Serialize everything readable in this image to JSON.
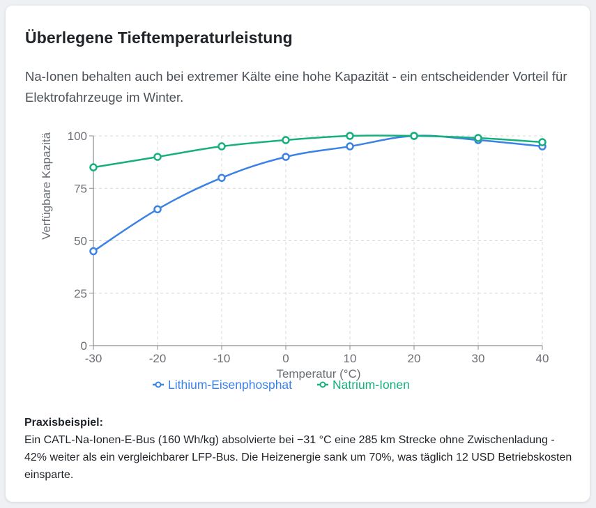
{
  "card": {
    "title": "Überlegene Tieftemperaturleistung",
    "subtitle": "Na-Ionen behalten auch bei extremer Kälte eine hohe Kapazität - ein entscheidender Vorteil für Elektrofahrzeuge im Winter."
  },
  "chart_data": {
    "type": "line",
    "x": [
      -30,
      -20,
      -10,
      0,
      10,
      20,
      30,
      40
    ],
    "xticks": [
      "-30",
      "-20",
      "-10",
      "0",
      "10",
      "20",
      "30",
      "40"
    ],
    "yticks": [
      "0",
      "25",
      "50",
      "75",
      "100"
    ],
    "ylim": [
      0,
      100
    ],
    "xlabel": "Temperatur (°C)",
    "ylabel": "Verfügbare Kapazitä",
    "grid": true,
    "legend_position": "bottom",
    "series": [
      {
        "name": "Lithium-Eisenphosphat",
        "color": "#3b82e6",
        "values": [
          45,
          65,
          80,
          90,
          95,
          100,
          98,
          95
        ]
      },
      {
        "name": "Natrium-Ionen",
        "color": "#16b07e",
        "values": [
          85,
          90,
          95,
          98,
          100,
          100,
          99,
          97
        ]
      }
    ]
  },
  "example": {
    "heading": "Praxisbeispiel:",
    "text": "Ein CATL-Na-Ionen-E-Bus (160 Wh/kg) absolvierte bei −31 °C eine 285 km Strecke ohne Zwischenladung - 42% weiter als ein vergleichbarer LFP-Bus. Die Heizenergie sank um 70%, was täglich 12 USD Betriebskosten einsparte."
  }
}
